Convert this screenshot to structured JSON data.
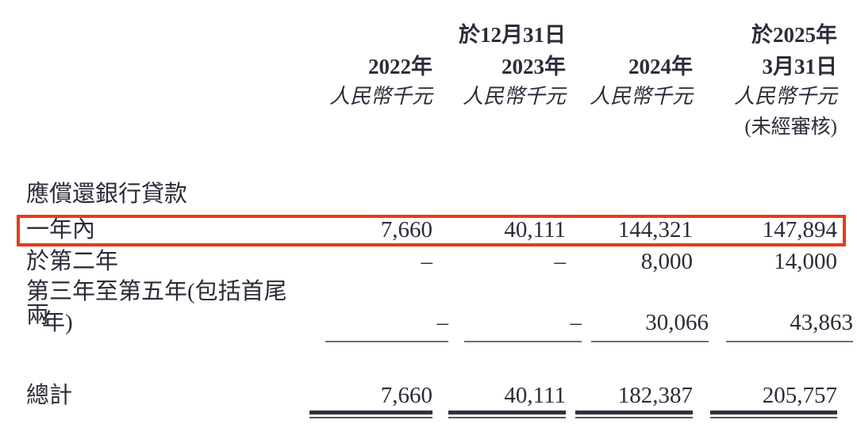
{
  "colors": {
    "text": "#2a2d38",
    "highlight_border": "#e83a1a",
    "single_rule": "#6e7076",
    "double_rule_dark": "#2e313c"
  },
  "table": {
    "header": {
      "dec31_label": "於12月31日",
      "col_2025_line1": "於2025年",
      "col_2025_line2": "3月31日",
      "years": [
        "2022年",
        "2023年",
        "2024年"
      ],
      "unit_label": "人民幣千元",
      "unaudited_label": "(未經審核)"
    },
    "section_label": "應償還銀行貸款",
    "rows": [
      {
        "label": "一年內",
        "highlighted": true,
        "values": [
          "7,660",
          "40,111",
          "144,321",
          "147,894"
        ]
      },
      {
        "label": "於第二年",
        "highlighted": false,
        "values": [
          "–",
          "–",
          "8,000",
          "14,000"
        ]
      },
      {
        "label_line1": "第三年至第五年(包括首尾兩",
        "label_line2": "年)",
        "highlighted": false,
        "values": [
          "–",
          "–",
          "30,066",
          "43,863"
        ]
      }
    ],
    "total": {
      "label": "總計",
      "values": [
        "7,660",
        "40,111",
        "182,387",
        "205,757"
      ]
    }
  }
}
